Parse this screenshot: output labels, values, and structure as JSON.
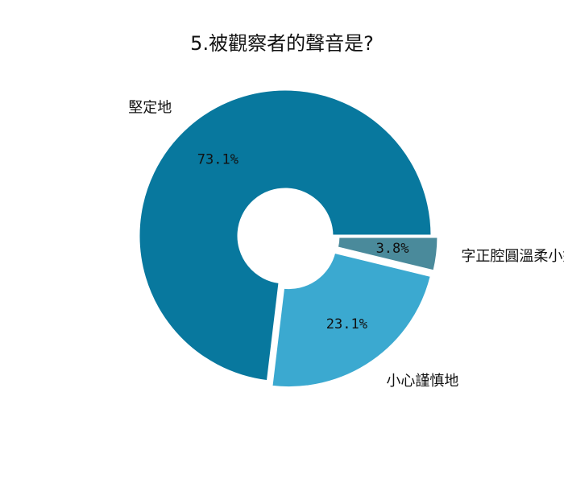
{
  "chart_data": {
    "type": "pie",
    "title": "5.被觀察者的聲音是?",
    "donut": true,
    "slices": [
      {
        "label": "堅定地",
        "value": 73.1,
        "percent_label": "73.1%",
        "color": "#08789e",
        "explode": false
      },
      {
        "label": "小心謹慎地",
        "value": 23.1,
        "percent_label": "23.1%",
        "color": "#3ba9d0",
        "explode": true
      },
      {
        "label": "字正腔圓溫柔小姊姊",
        "value": 3.8,
        "percent_label": "3.8%",
        "color": "#4a8a9b",
        "explode": true
      }
    ]
  }
}
